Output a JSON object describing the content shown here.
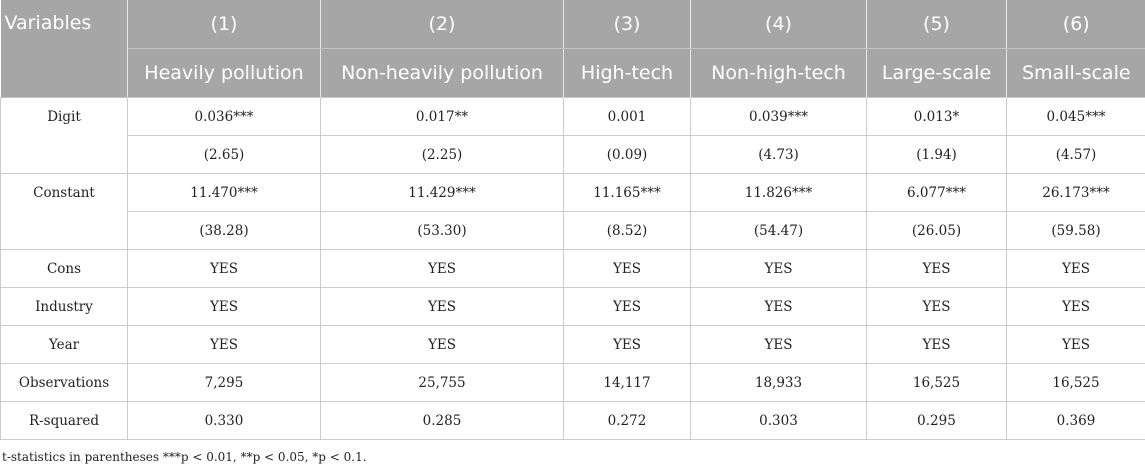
{
  "table": {
    "header_row1": [
      "Variables",
      "(1)",
      "(2)",
      "(3)",
      "(4)",
      "(5)",
      "(6)"
    ],
    "header_row2": [
      "Heavily pollution",
      "Non-heavily pollution",
      "High-tech",
      "Non-high-tech",
      "Large-scale",
      "Small-scale"
    ],
    "digit": {
      "label": "Digit",
      "coef": [
        "0.036***",
        "0.017**",
        "0.001",
        "0.039***",
        "0.013*",
        "0.045***"
      ],
      "tstat": [
        "(2.65)",
        "(2.25)",
        "(0.09)",
        "(4.73)",
        "(1.94)",
        "(4.57)"
      ]
    },
    "constant": {
      "label": "Constant",
      "coef": [
        "11.470***",
        "11.429***",
        "11.165***",
        "11.826***",
        "6.077***",
        "26.173***"
      ],
      "tstat": [
        "(38.28)",
        "(53.30)",
        "(8.52)",
        "(54.47)",
        "(26.05)",
        "(59.58)"
      ]
    },
    "rows": [
      {
        "label": "Cons",
        "values": [
          "YES",
          "YES",
          "YES",
          "YES",
          "YES",
          "YES"
        ]
      },
      {
        "label": "Industry",
        "values": [
          "YES",
          "YES",
          "YES",
          "YES",
          "YES",
          "YES"
        ]
      },
      {
        "label": "Year",
        "values": [
          "YES",
          "YES",
          "YES",
          "YES",
          "YES",
          "YES"
        ]
      },
      {
        "label": "Observations",
        "values": [
          "7,295",
          "25,755",
          "14,117",
          "18,933",
          "16,525",
          "16,525"
        ]
      },
      {
        "label": "R-squared",
        "values": [
          "0.330",
          "0.285",
          "0.272",
          "0.303",
          "0.295",
          "0.369"
        ]
      }
    ]
  },
  "note": "t-statistics in parentheses ***p < 0.01, **p < 0.05, *p < 0.1."
}
